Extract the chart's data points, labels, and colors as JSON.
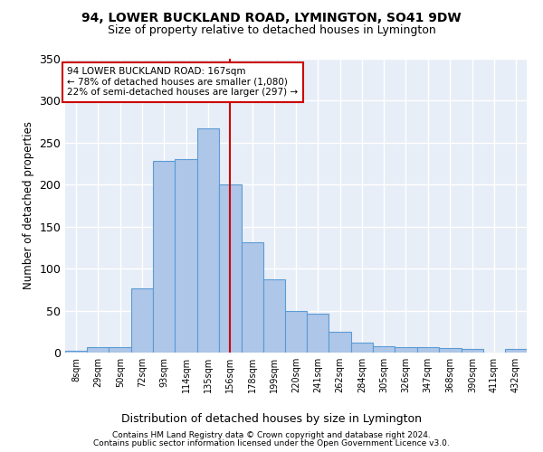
{
  "title": "94, LOWER BUCKLAND ROAD, LYMINGTON, SO41 9DW",
  "subtitle": "Size of property relative to detached houses in Lymington",
  "xlabel": "Distribution of detached houses by size in Lymington",
  "ylabel": "Number of detached properties",
  "bar_labels": [
    "8sqm",
    "29sqm",
    "50sqm",
    "72sqm",
    "93sqm",
    "114sqm",
    "135sqm",
    "156sqm",
    "178sqm",
    "199sqm",
    "220sqm",
    "241sqm",
    "262sqm",
    "284sqm",
    "305sqm",
    "326sqm",
    "347sqm",
    "368sqm",
    "390sqm",
    "411sqm",
    "432sqm"
  ],
  "bar_heights": [
    2,
    6,
    7,
    77,
    228,
    230,
    267,
    200,
    131,
    87,
    50,
    46,
    25,
    12,
    8,
    7,
    6,
    5,
    4,
    0,
    4
  ],
  "bar_color": "#aec6e8",
  "bar_edge_color": "#5b9bd5",
  "vline_color": "#cc0000",
  "annotation_text": "94 LOWER BUCKLAND ROAD: 167sqm\n← 78% of detached houses are smaller (1,080)\n22% of semi-detached houses are larger (297) →",
  "annotation_box_color": "#ffffff",
  "annotation_box_edge": "#cc0000",
  "ylim": [
    0,
    350
  ],
  "yticks": [
    0,
    50,
    100,
    150,
    200,
    250,
    300,
    350
  ],
  "background_color": "#e8eef7",
  "grid_color": "#ffffff",
  "footer1": "Contains HM Land Registry data © Crown copyright and database right 2024.",
  "footer2": "Contains public sector information licensed under the Open Government Licence v3.0.",
  "bin_edges": [
    8,
    29,
    50,
    72,
    93,
    114,
    135,
    156,
    178,
    199,
    220,
    241,
    262,
    284,
    305,
    326,
    347,
    368,
    390,
    411,
    432,
    453
  ]
}
